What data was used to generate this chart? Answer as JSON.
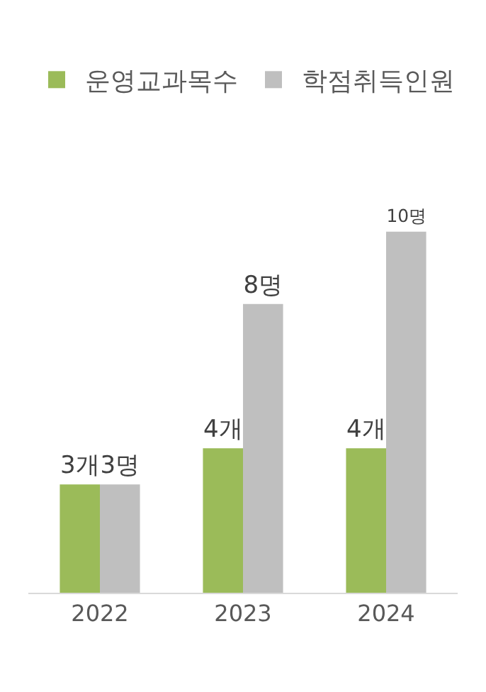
{
  "chart_data": {
    "type": "bar",
    "categories": [
      "2022",
      "2023",
      "2024"
    ],
    "series": [
      {
        "name": "운영교과목수",
        "color": "#9bbb59",
        "values": [
          3,
          4,
          4
        ],
        "value_labels": [
          "3개",
          "4개",
          "4개"
        ]
      },
      {
        "name": "학점취득인원",
        "color": "#bfbfbf",
        "values": [
          3,
          8,
          10
        ],
        "value_labels": [
          "3명",
          "8명",
          "10명"
        ]
      }
    ],
    "legend": "top left",
    "grid": false,
    "tick_labels": "x"
  }
}
